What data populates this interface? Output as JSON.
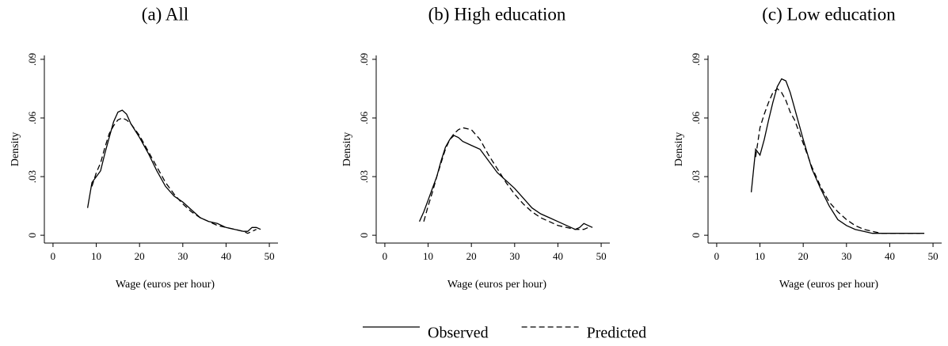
{
  "chart_data": [
    {
      "type": "line",
      "title": "(a) All",
      "xlabel": "Wage (euros per hour)",
      "ylabel": "Density",
      "x": [
        8,
        9,
        10,
        11,
        12,
        13,
        14,
        15,
        16,
        17,
        18,
        20,
        22,
        24,
        26,
        28,
        30,
        32,
        34,
        36,
        38,
        40,
        42,
        44,
        45,
        46,
        47,
        48
      ],
      "series": [
        {
          "style": "solid",
          "color": "#000000",
          "values": [
            0.014,
            0.027,
            0.03,
            0.033,
            0.042,
            0.05,
            0.058,
            0.063,
            0.064,
            0.062,
            0.057,
            0.05,
            0.042,
            0.033,
            0.025,
            0.02,
            0.017,
            0.013,
            0.009,
            0.007,
            0.006,
            0.004,
            0.003,
            0.002,
            0.002,
            0.004,
            0.004,
            0.003
          ]
        },
        {
          "style": "dashed",
          "color": "#000000",
          "values": [
            null,
            0.025,
            0.032,
            0.037,
            0.045,
            0.052,
            0.056,
            0.059,
            0.06,
            0.059,
            0.057,
            0.051,
            0.043,
            0.035,
            0.027,
            0.021,
            0.016,
            0.012,
            0.009,
            0.007,
            0.005,
            0.004,
            0.003,
            0.002,
            0.001,
            0.002,
            0.003,
            null
          ]
        }
      ],
      "xlim": [
        -2,
        52
      ],
      "xticks": [
        0,
        10,
        20,
        30,
        40,
        50
      ],
      "ylim": [
        -0.004,
        0.092
      ],
      "yticks": [
        0,
        {
          "value": 0.03,
          "label": ".03"
        },
        {
          "value": 0.06,
          "label": ".06"
        },
        {
          "value": 0.09,
          "label": ".09"
        }
      ]
    },
    {
      "type": "line",
      "title": "(b) High education",
      "xlabel": "Wage (euros per hour)",
      "ylabel": "Density",
      "x": [
        8,
        9,
        10,
        11,
        12,
        13,
        14,
        15,
        16,
        17,
        18,
        20,
        22,
        24,
        26,
        28,
        30,
        32,
        34,
        36,
        38,
        40,
        42,
        44,
        45,
        46,
        47,
        48
      ],
      "series": [
        {
          "style": "solid",
          "color": "#000000",
          "values": [
            0.007,
            0.012,
            0.018,
            0.024,
            0.03,
            0.038,
            0.045,
            0.049,
            0.051,
            0.05,
            0.048,
            0.046,
            0.044,
            0.038,
            0.032,
            0.028,
            0.024,
            0.019,
            0.014,
            0.011,
            0.009,
            0.007,
            0.005,
            0.003,
            0.004,
            0.006,
            0.005,
            0.004
          ]
        },
        {
          "style": "dashed",
          "color": "#000000",
          "values": [
            null,
            0.007,
            0.015,
            0.022,
            0.03,
            0.037,
            0.044,
            0.049,
            0.052,
            0.054,
            0.055,
            0.054,
            0.049,
            0.041,
            0.034,
            0.027,
            0.021,
            0.016,
            0.012,
            0.009,
            0.007,
            0.005,
            0.004,
            0.003,
            0.003,
            0.003,
            0.004,
            null
          ]
        }
      ],
      "xlim": [
        -2,
        52
      ],
      "xticks": [
        0,
        10,
        20,
        30,
        40,
        50
      ],
      "ylim": [
        -0.004,
        0.092
      ],
      "yticks": [
        0,
        {
          "value": 0.03,
          "label": ".03"
        },
        {
          "value": 0.06,
          "label": ".06"
        },
        {
          "value": 0.09,
          "label": ".09"
        }
      ]
    },
    {
      "type": "line",
      "title": "(c) Low education",
      "xlabel": "Wage (euros per hour)",
      "ylabel": "Density",
      "x": [
        8,
        9,
        10,
        11,
        12,
        13,
        14,
        15,
        16,
        17,
        18,
        20,
        22,
        24,
        26,
        28,
        30,
        32,
        34,
        36,
        38,
        40,
        42,
        44,
        45,
        46,
        47,
        48
      ],
      "series": [
        {
          "style": "solid",
          "color": "#000000",
          "values": [
            0.022,
            0.044,
            0.041,
            0.049,
            0.059,
            0.068,
            0.076,
            0.08,
            0.079,
            0.073,
            0.065,
            0.049,
            0.034,
            0.024,
            0.015,
            0.008,
            0.005,
            0.003,
            0.002,
            0.001,
            0.001,
            0.001,
            0.001,
            0.001,
            0.001,
            0.001,
            0.001,
            0.001
          ]
        },
        {
          "style": "dashed",
          "color": "#000000",
          "values": [
            null,
            0.04,
            0.055,
            0.062,
            0.068,
            0.073,
            0.075,
            0.073,
            0.069,
            0.063,
            0.059,
            0.047,
            0.035,
            0.025,
            0.017,
            0.012,
            0.008,
            0.005,
            0.003,
            0.002,
            0.001,
            0.001,
            0.001,
            0.001,
            0.001,
            0.001,
            0.001,
            null
          ]
        }
      ],
      "xlim": [
        -2,
        52
      ],
      "xticks": [
        0,
        10,
        20,
        30,
        40,
        50
      ],
      "ylim": [
        -0.004,
        0.092
      ],
      "yticks": [
        0,
        {
          "value": 0.03,
          "label": ".03"
        },
        {
          "value": 0.06,
          "label": ".06"
        },
        {
          "value": 0.09,
          "label": ".09"
        }
      ]
    }
  ],
  "legend": {
    "position": "bottom",
    "entries": [
      {
        "name": "Observed",
        "style": "solid"
      },
      {
        "name": "Predicted",
        "style": "dashed"
      }
    ]
  }
}
